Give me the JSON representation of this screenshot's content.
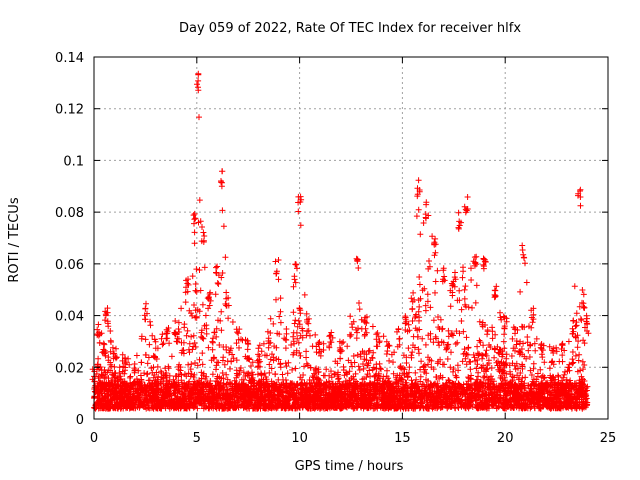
{
  "chart_data": {
    "type": "scatter",
    "title": "Day 059 of 2022, Rate Of TEC Index for receiver hlfx",
    "xlabel": "GPS time / hours",
    "ylabel": "ROTI / TECUs",
    "xlim": [
      0,
      25
    ],
    "ylim": [
      0,
      0.14
    ],
    "xticks": [
      "0",
      "5",
      "10",
      "15",
      "20",
      "25"
    ],
    "yticks": [
      "0",
      "0.02",
      "0.04",
      "0.06",
      "0.08",
      "0.1",
      "0.12",
      "0.14"
    ],
    "xtick_values": [
      0,
      5,
      10,
      15,
      20,
      25
    ],
    "ytick_values": [
      0,
      0.02,
      0.04,
      0.06,
      0.08,
      0.1,
      0.12,
      0.14
    ],
    "grid": true,
    "marker": "+",
    "color": "#ff0000",
    "x_range_data": [
      0,
      24
    ],
    "baseline_band": [
      0.004,
      0.014
    ],
    "envelope": [
      [
        0.0,
        0.022
      ],
      [
        0.2,
        0.04
      ],
      [
        0.5,
        0.03
      ],
      [
        0.6,
        0.045
      ],
      [
        1.0,
        0.028
      ],
      [
        1.5,
        0.025
      ],
      [
        2.0,
        0.022
      ],
      [
        2.5,
        0.046
      ],
      [
        3.0,
        0.03
      ],
      [
        3.5,
        0.035
      ],
      [
        4.0,
        0.038
      ],
      [
        4.5,
        0.055
      ],
      [
        4.9,
        0.08
      ],
      [
        5.05,
        0.135
      ],
      [
        5.3,
        0.075
      ],
      [
        5.6,
        0.05
      ],
      [
        6.0,
        0.06
      ],
      [
        6.2,
        0.097
      ],
      [
        6.5,
        0.05
      ],
      [
        7.0,
        0.035
      ],
      [
        7.5,
        0.03
      ],
      [
        8.0,
        0.028
      ],
      [
        8.5,
        0.035
      ],
      [
        8.9,
        0.062
      ],
      [
        9.3,
        0.035
      ],
      [
        9.8,
        0.06
      ],
      [
        10.0,
        0.086
      ],
      [
        10.4,
        0.04
      ],
      [
        11.0,
        0.03
      ],
      [
        11.5,
        0.035
      ],
      [
        12.0,
        0.03
      ],
      [
        12.5,
        0.04
      ],
      [
        12.8,
        0.065
      ],
      [
        13.2,
        0.04
      ],
      [
        13.8,
        0.035
      ],
      [
        14.3,
        0.03
      ],
      [
        14.8,
        0.035
      ],
      [
        15.2,
        0.04
      ],
      [
        15.5,
        0.05
      ],
      [
        15.8,
        0.094
      ],
      [
        16.2,
        0.085
      ],
      [
        16.6,
        0.07
      ],
      [
        17.0,
        0.06
      ],
      [
        17.5,
        0.055
      ],
      [
        17.8,
        0.08
      ],
      [
        18.1,
        0.087
      ],
      [
        18.6,
        0.065
      ],
      [
        19.0,
        0.062
      ],
      [
        19.5,
        0.055
      ],
      [
        20.0,
        0.04
      ],
      [
        20.5,
        0.035
      ],
      [
        20.9,
        0.068
      ],
      [
        21.3,
        0.045
      ],
      [
        21.8,
        0.03
      ],
      [
        22.3,
        0.028
      ],
      [
        22.8,
        0.03
      ],
      [
        23.3,
        0.04
      ],
      [
        23.6,
        0.09
      ],
      [
        23.8,
        0.05
      ],
      [
        24.0,
        0.04
      ]
    ]
  }
}
